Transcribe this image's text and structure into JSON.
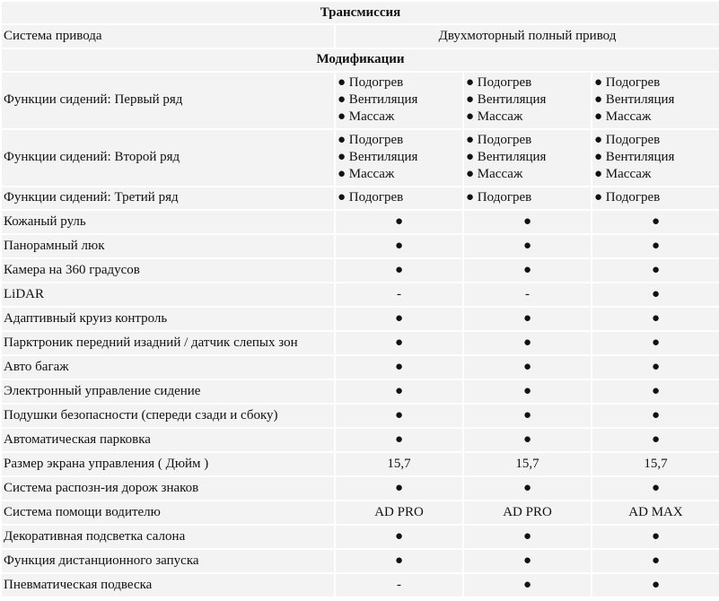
{
  "sections": {
    "transmission": "Трансмиссия",
    "modifications": "Модификации"
  },
  "drive": {
    "label": "Система привода",
    "value": "Двухмоторный полный привод"
  },
  "seat_rows": [
    {
      "label": "Функции сидений: Первый ряд",
      "cols": [
        [
          "● Подогрев",
          "● Вентиляция",
          "● Массаж"
        ],
        [
          "● Подогрев",
          "● Вентиляция",
          "● Массаж"
        ],
        [
          "● Подогрев",
          "● Вентиляция",
          "● Массаж"
        ]
      ]
    },
    {
      "label": "Функции сидений: Второй ряд",
      "cols": [
        [
          "● Подогрев",
          "● Вентиляция",
          "● Массаж"
        ],
        [
          "● Подогрев",
          "● Вентиляция",
          "● Массаж"
        ],
        [
          "● Подогрев",
          "● Вентиляция",
          "● Массаж"
        ]
      ]
    }
  ],
  "third_row": {
    "label": "Функции сидений: Третий ряд",
    "cols": [
      "● Подогрев",
      "● Подогрев",
      "● Подогрев"
    ]
  },
  "features": [
    {
      "label": "Кожаный руль",
      "values": [
        "●",
        "●",
        "●"
      ]
    },
    {
      "label": "Панорамный люк",
      "values": [
        "●",
        "●",
        "●"
      ]
    },
    {
      "label": "Камера на 360 градусов",
      "values": [
        "●",
        "●",
        "●"
      ]
    },
    {
      "label": "LiDAR",
      "values": [
        "-",
        "-",
        "●"
      ]
    },
    {
      "label": "Адаптивный круиз контроль",
      "values": [
        "●",
        "●",
        "●"
      ]
    },
    {
      "label": "Парктроник передний изадний / датчик слепых зон",
      "values": [
        "●",
        "●",
        "●"
      ]
    },
    {
      "label": "Авто багаж",
      "values": [
        "●",
        "●",
        "●"
      ]
    },
    {
      "label": "Электронный управление сидение",
      "values": [
        "●",
        "●",
        "●"
      ]
    },
    {
      "label": "Подушки безопасности (спереди сзади и сбоку)",
      "values": [
        "●",
        "●",
        "●"
      ]
    },
    {
      "label": "Автоматическая парковка",
      "values": [
        "●",
        "●",
        "●"
      ]
    },
    {
      "label": "Размер экрана управления ( Дюйм )",
      "values": [
        "15,7",
        "15,7",
        "15,7"
      ]
    },
    {
      "label": "Система распозн-ия дорож знаков",
      "values": [
        "●",
        "●",
        "●"
      ]
    },
    {
      "label": "Система помощи водителю",
      "values": [
        "AD PRO",
        "AD PRO",
        "AD MAX"
      ]
    },
    {
      "label": "Декоративная подсветка салона",
      "values": [
        "●",
        "●",
        "●"
      ]
    },
    {
      "label": "Функция дистанционного запуска",
      "values": [
        "●",
        "●",
        "●"
      ]
    },
    {
      "label": "Пневматическая подвеска",
      "values": [
        "-",
        "●",
        "●"
      ]
    }
  ]
}
